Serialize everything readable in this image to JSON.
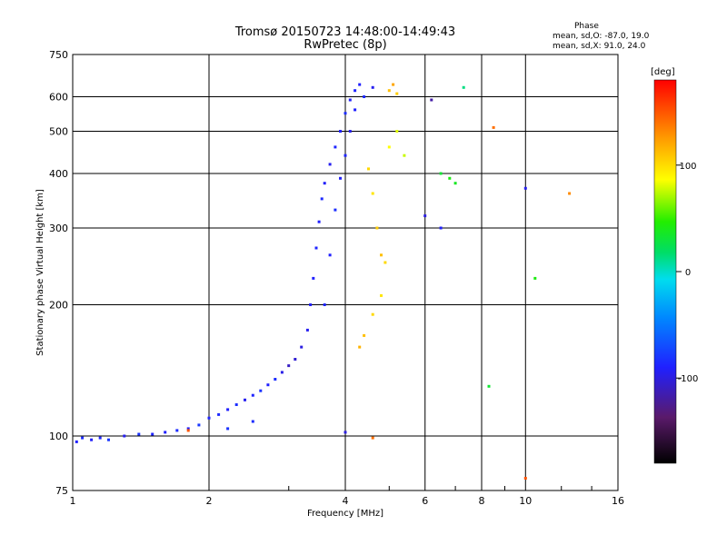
{
  "chart_data": {
    "type": "scatter",
    "title": "Tromsø 20150723 14:48:00-14:49:43",
    "subtitle": "RwPretec (8p)",
    "phase_box": {
      "heading": "Phase",
      "line_o": "mean, sd,O: -87.0, 19.0",
      "line_x": "mean, sd,X:  91.0, 24.0"
    },
    "xlabel": "Frequency [MHz]",
    "ylabel": "Stationary phase Virtual Height [km]",
    "x_scale": "log",
    "y_scale": "log",
    "xlim": [
      1,
      16
    ],
    "ylim": [
      75,
      750
    ],
    "xticks": [
      1,
      2,
      4,
      6,
      8,
      10,
      16
    ],
    "xtick_labels": [
      "1",
      "2",
      "4",
      "6",
      "8",
      "10",
      "16"
    ],
    "yticks": [
      75,
      100,
      200,
      300,
      400,
      500,
      600,
      750
    ],
    "ytick_labels": [
      "75",
      "100",
      "200",
      "300",
      "400",
      "500",
      "600",
      "750"
    ],
    "grid": true,
    "colorbar": {
      "label": "[deg]",
      "range": [
        -180,
        180
      ],
      "ticks": [
        100,
        0,
        -100
      ],
      "tick_labels": [
        "100",
        "0",
        "-100"
      ]
    },
    "series": [
      {
        "values_xy_phase": [
          [
            1.02,
            97,
            -90
          ],
          [
            1.05,
            99,
            -85
          ],
          [
            1.1,
            98,
            -92
          ],
          [
            1.15,
            99,
            -88
          ],
          [
            1.2,
            98,
            -80
          ],
          [
            1.3,
            100,
            -95
          ],
          [
            1.4,
            101,
            -82
          ],
          [
            1.5,
            101,
            -88
          ],
          [
            1.6,
            102,
            -90
          ],
          [
            1.7,
            103,
            -85
          ],
          [
            1.8,
            104,
            -92
          ],
          [
            1.9,
            106,
            -80
          ],
          [
            2.0,
            110,
            -88
          ],
          [
            2.1,
            112,
            -86
          ],
          [
            2.2,
            115,
            -90
          ],
          [
            2.3,
            118,
            -84
          ],
          [
            2.4,
            121,
            -95
          ],
          [
            2.5,
            124,
            -88
          ],
          [
            2.6,
            127,
            -82
          ],
          [
            2.7,
            131,
            -90
          ],
          [
            2.8,
            135,
            -85
          ],
          [
            2.9,
            140,
            -98
          ],
          [
            3.0,
            145,
            -110
          ],
          [
            3.1,
            150,
            -105
          ],
          [
            3.2,
            160,
            -100
          ],
          [
            3.3,
            175,
            -95
          ],
          [
            3.35,
            200,
            -92
          ],
          [
            3.4,
            230,
            -90
          ],
          [
            3.45,
            270,
            -88
          ],
          [
            3.5,
            310,
            -90
          ],
          [
            3.55,
            350,
            -86
          ],
          [
            3.6,
            380,
            -92
          ],
          [
            3.7,
            420,
            -95
          ],
          [
            3.8,
            460,
            -88
          ],
          [
            3.9,
            500,
            -90
          ],
          [
            4.0,
            550,
            -85
          ],
          [
            4.1,
            590,
            -92
          ],
          [
            4.2,
            620,
            -88
          ],
          [
            4.3,
            640,
            -90
          ],
          [
            4.4,
            600,
            -86
          ],
          [
            4.6,
            630,
            -95
          ],
          [
            3.6,
            200,
            -88
          ],
          [
            3.7,
            260,
            -90
          ],
          [
            3.8,
            330,
            -84
          ],
          [
            3.9,
            390,
            -92
          ],
          [
            4.0,
            440,
            -88
          ],
          [
            4.1,
            500,
            -95
          ],
          [
            4.2,
            560,
            -90
          ],
          [
            2.5,
            108,
            -85
          ],
          [
            2.2,
            104,
            -82
          ],
          [
            4.5,
            410,
            100
          ],
          [
            4.6,
            360,
            95
          ],
          [
            4.7,
            300,
            105
          ],
          [
            4.8,
            260,
            110
          ],
          [
            4.9,
            250,
            100
          ],
          [
            5.0,
            460,
            85
          ],
          [
            5.2,
            500,
            80
          ],
          [
            5.4,
            440,
            75
          ],
          [
            5.0,
            620,
            110
          ],
          [
            5.1,
            640,
            120
          ],
          [
            5.2,
            610,
            105
          ],
          [
            4.4,
            170,
            110
          ],
          [
            4.6,
            190,
            100
          ],
          [
            4.8,
            210,
            95
          ],
          [
            4.3,
            160,
            115
          ],
          [
            6.5,
            400,
            30
          ],
          [
            6.8,
            390,
            40
          ],
          [
            7.0,
            380,
            35
          ],
          [
            6.2,
            590,
            -120
          ],
          [
            7.3,
            630,
            10
          ],
          [
            6.0,
            320,
            -100
          ],
          [
            6.5,
            300,
            -90
          ],
          [
            10.0,
            370,
            -95
          ],
          [
            10.5,
            230,
            40
          ],
          [
            12.5,
            360,
            130
          ],
          [
            8.5,
            510,
            140
          ],
          [
            10.0,
            80,
            150
          ],
          [
            8.3,
            130,
            30
          ],
          [
            4.0,
            102,
            -100
          ],
          [
            4.6,
            99,
            140
          ],
          [
            1.8,
            103,
            150
          ]
        ]
      }
    ]
  }
}
